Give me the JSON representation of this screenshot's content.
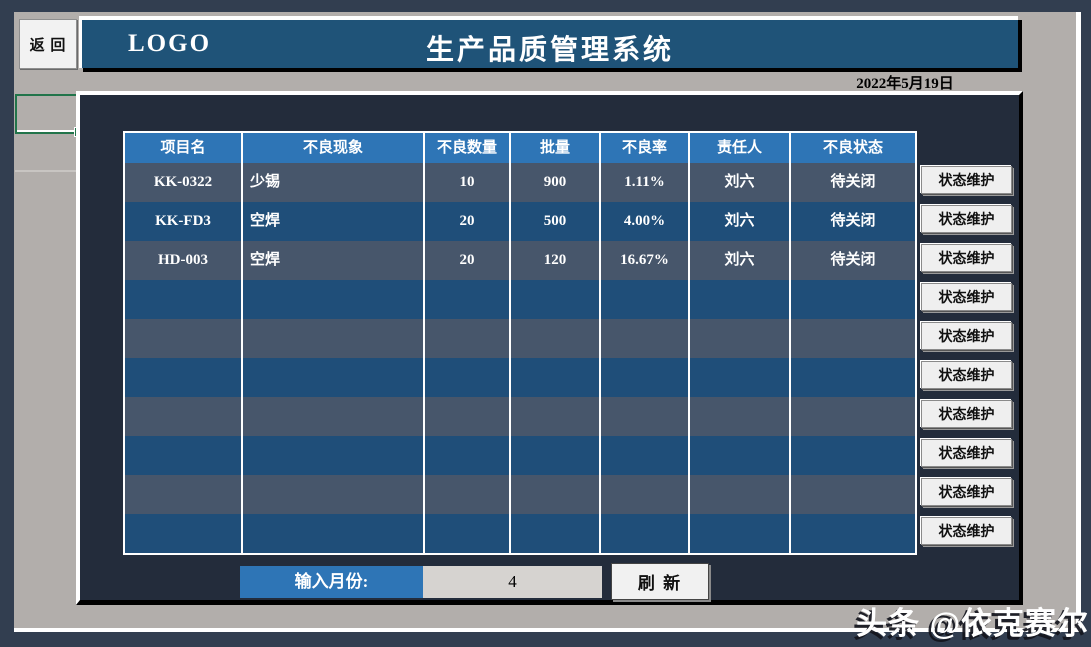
{
  "header": {
    "back_label": "返 回",
    "logo": "LOGO",
    "title": "生产品质管理系统",
    "date": "2022年5月19日"
  },
  "table": {
    "headers": [
      "项目名",
      "不良现象",
      "不良数量",
      "批量",
      "不良率",
      "责任人",
      "不良状态"
    ],
    "rows": [
      [
        "KK-0322",
        "少锡",
        "10",
        "900",
        "1.11%",
        "刘六",
        "待关闭"
      ],
      [
        "KK-FD3",
        "空焊",
        "20",
        "500",
        "4.00%",
        "刘六",
        "待关闭"
      ],
      [
        "HD-003",
        "空焊",
        "20",
        "120",
        "16.67%",
        "刘六",
        "待关闭"
      ],
      [
        "",
        "",
        "",
        "",
        "",
        "",
        ""
      ],
      [
        "",
        "",
        "",
        "",
        "",
        "",
        ""
      ],
      [
        "",
        "",
        "",
        "",
        "",
        "",
        ""
      ],
      [
        "",
        "",
        "",
        "",
        "",
        "",
        ""
      ],
      [
        "",
        "",
        "",
        "",
        "",
        "",
        ""
      ],
      [
        "",
        "",
        "",
        "",
        "",
        "",
        ""
      ],
      [
        "",
        "",
        "",
        "",
        "",
        "",
        ""
      ]
    ],
    "action_button_label": "状态维护",
    "action_button_count": 10
  },
  "footer": {
    "month_label": "输入月份:",
    "month_value": "4",
    "refresh_label": "刷 新"
  },
  "watermark": "头条 @依克赛尔",
  "colors": {
    "frame_navy": "#323e50",
    "panel_gray": "#b2aeab",
    "header_blue": "#1f5378",
    "table_header_blue": "#2e75b6",
    "row_slate": "#47566b",
    "row_blue": "#1f4e79",
    "content_dark": "#232c3b",
    "selection_green": "#21744a"
  }
}
